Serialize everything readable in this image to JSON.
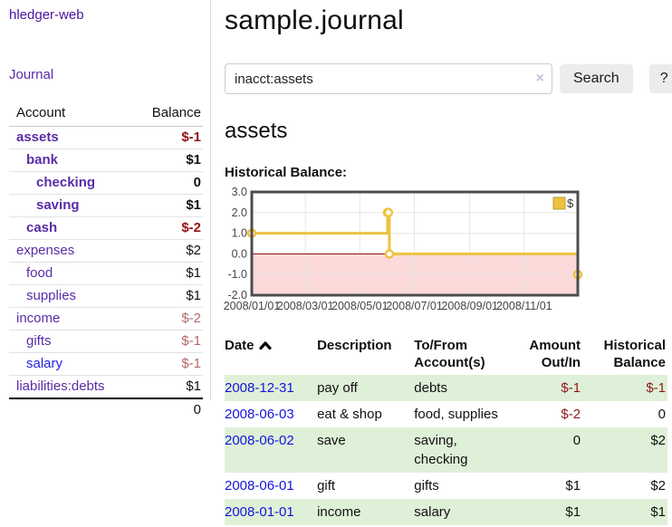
{
  "app": {
    "brand": "hledger-web",
    "nav": {
      "journal_label": "Journal"
    }
  },
  "sidebar": {
    "header": {
      "account": "Account",
      "balance": "Balance"
    },
    "rows": [
      {
        "name": "assets",
        "indent": 1,
        "bold": true,
        "balance": "$-1",
        "balance_style": "neg-strong",
        "link_style": "purple"
      },
      {
        "name": "bank",
        "indent": 2,
        "bold": true,
        "balance": "$1",
        "balance_style": "pos",
        "link_style": "purple"
      },
      {
        "name": "checking",
        "indent": 3,
        "bold": true,
        "balance": "0",
        "balance_style": "pos",
        "link_style": "purple"
      },
      {
        "name": "saving",
        "indent": 3,
        "bold": true,
        "balance": "$1",
        "balance_style": "pos",
        "link_style": "purple"
      },
      {
        "name": "cash",
        "indent": 2,
        "bold": true,
        "balance": "$-2",
        "balance_style": "neg-strong",
        "link_style": "purple"
      },
      {
        "name": "expenses",
        "indent": 1,
        "bold": false,
        "balance": "$2",
        "balance_style": "pos",
        "link_style": "purple"
      },
      {
        "name": "food",
        "indent": 2,
        "bold": false,
        "balance": "$1",
        "balance_style": "pos",
        "link_style": "purple"
      },
      {
        "name": "supplies",
        "indent": 2,
        "bold": false,
        "balance": "$1",
        "balance_style": "pos",
        "link_style": "purple"
      },
      {
        "name": "income",
        "indent": 1,
        "bold": false,
        "balance": "$-2",
        "balance_style": "neg-soft",
        "link_style": "purple"
      },
      {
        "name": "gifts",
        "indent": 2,
        "bold": false,
        "balance": "$-1",
        "balance_style": "neg-soft",
        "link_style": "purple"
      },
      {
        "name": "salary",
        "indent": 2,
        "bold": false,
        "balance": "$-1",
        "balance_style": "neg-soft",
        "link_style": "blue"
      },
      {
        "name": "liabilities:debts",
        "indent": 1,
        "bold": false,
        "balance": "$1",
        "balance_style": "pos",
        "link_style": "purple"
      }
    ],
    "total": "0"
  },
  "header": {
    "title": "sample.journal"
  },
  "search": {
    "value": "inacct:assets",
    "clear_icon": "×",
    "button_label": "Search",
    "help_label": "?"
  },
  "account_page": {
    "heading": "assets",
    "chart_title": "Historical Balance:"
  },
  "chart_data": {
    "type": "line",
    "step": true,
    "title": "Historical Balance",
    "series": [
      {
        "name": "$",
        "color": "#edc240",
        "marker_fill": "#ffffff",
        "points": [
          [
            "2008-01-01",
            1
          ],
          [
            "2008-06-01",
            2
          ],
          [
            "2008-06-02",
            2
          ],
          [
            "2008-06-03",
            0
          ],
          [
            "2008-12-31",
            -1
          ]
        ]
      }
    ],
    "x_ticks": [
      "2008/01/01",
      "2008/03/01",
      "2008/05/01",
      "2008/07/01",
      "2008/09/01",
      "2008/11/01"
    ],
    "y_ticks": [
      "3.0",
      "2.0",
      "1.0",
      "0.0",
      "-1.0",
      "-2.0"
    ],
    "ylim": [
      -2,
      3
    ],
    "grid": true,
    "legend_position": "top-right",
    "negative_region_color": "#fcdada",
    "zero_line_color": "#8b0000",
    "grid_color": "#e6e6e6",
    "border_color": "#4d4d4d",
    "tick_label_color": "#444444"
  },
  "register": {
    "columns": [
      {
        "line1": "Date",
        "line2": "",
        "align": "left",
        "sortable": true,
        "sort_dir": "asc"
      },
      {
        "line1": "Description",
        "line2": "",
        "align": "left",
        "sortable": false
      },
      {
        "line1": "To/From",
        "line2": "Account(s)",
        "align": "left",
        "sortable": false
      },
      {
        "line1": "Amount",
        "line2": "Out/In",
        "align": "right",
        "sortable": false
      },
      {
        "line1": "Historical",
        "line2": "Balance",
        "align": "right",
        "sortable": false
      }
    ],
    "rows": [
      {
        "date": "2008-12-31",
        "description": "pay off",
        "accounts": "debts",
        "amount": "$-1",
        "amount_neg": true,
        "balance": "$-1",
        "balance_neg": true
      },
      {
        "date": "2008-06-03",
        "description": "eat & shop",
        "accounts": "food, supplies",
        "amount": "$-2",
        "amount_neg": true,
        "balance": "0",
        "balance_neg": false
      },
      {
        "date": "2008-06-02",
        "description": "save",
        "accounts": "saving, checking",
        "amount": "0",
        "amount_neg": false,
        "balance": "$2",
        "balance_neg": false
      },
      {
        "date": "2008-06-01",
        "description": "gift",
        "accounts": "gifts",
        "amount": "$1",
        "amount_neg": false,
        "balance": "$2",
        "balance_neg": false
      },
      {
        "date": "2008-01-01",
        "description": "income",
        "accounts": "salary",
        "amount": "$1",
        "amount_neg": false,
        "balance": "$1",
        "balance_neg": false
      }
    ]
  }
}
